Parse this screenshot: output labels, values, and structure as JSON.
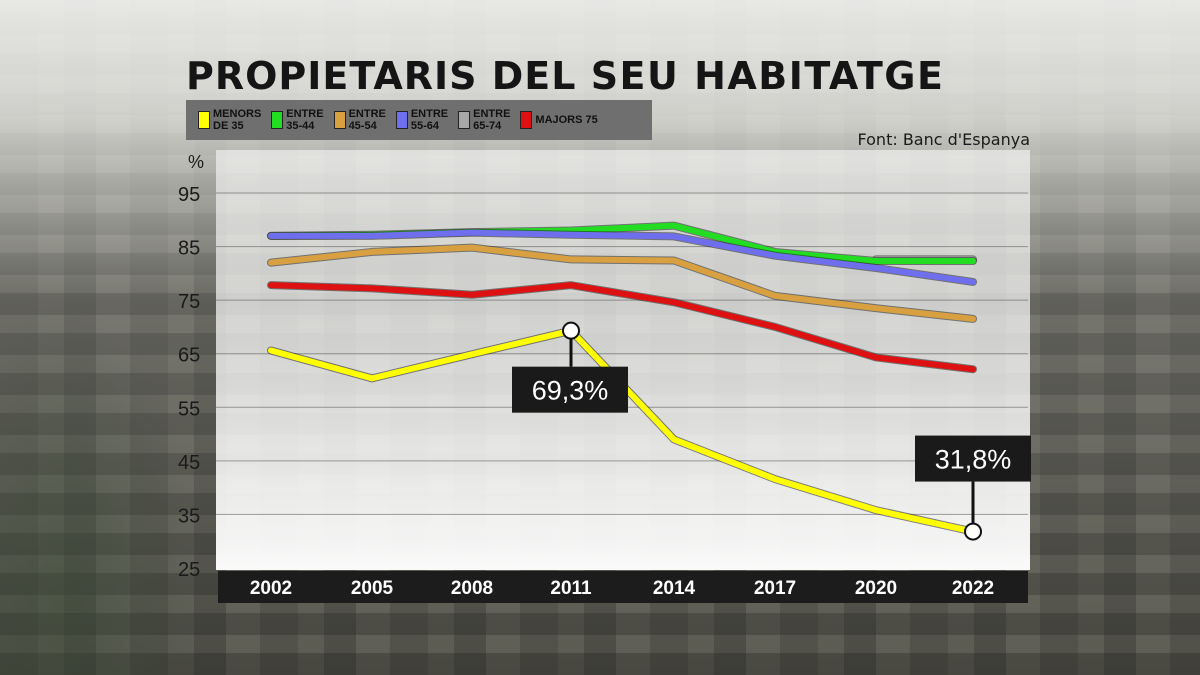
{
  "chart_data": {
    "type": "line",
    "title_part1": "PROPIETARIS DEL ",
    "title_part2": "SEU HABITATGE",
    "source": "Font: Banc d'Espanya",
    "ylabel": "%",
    "ylim": [
      25,
      95
    ],
    "yticks": [
      "95",
      "85",
      "75",
      "65",
      "55",
      "45",
      "35",
      "25"
    ],
    "categories": [
      "2002",
      "2005",
      "2008",
      "2011",
      "2014",
      "2017",
      "2020",
      "2022"
    ],
    "grid": true,
    "legend_position": "top-left",
    "series": [
      {
        "name": "MENORS\nDE 35",
        "color": "#ffff00",
        "values": [
          65.6,
          60.4,
          64.9,
          69.3,
          49.0,
          41.6,
          35.8,
          31.8
        ]
      },
      {
        "name": "ENTRE\n35-44",
        "color": "#22dd22",
        "values": [
          87.0,
          87.2,
          87.7,
          88.0,
          88.9,
          84.0,
          82.3,
          82.3
        ]
      },
      {
        "name": "ENTRE\n45-54",
        "color": "#d8a040",
        "values": [
          82.0,
          84.0,
          84.8,
          82.6,
          82.4,
          75.8,
          73.5,
          71.5
        ]
      },
      {
        "name": "ENTRE\n55-64",
        "color": "#6f6fee",
        "values": [
          87.0,
          87.0,
          87.6,
          87.2,
          86.9,
          83.3,
          81.0,
          78.4
        ]
      },
      {
        "name": "ENTRE\n65-74",
        "color": "#a8a8a8",
        "values": [
          null,
          null,
          null,
          null,
          null,
          null,
          82.6,
          82.6
        ]
      },
      {
        "name": "MAJORS 75",
        "color": "#dd1111",
        "values": [
          77.8,
          77.2,
          76.0,
          77.8,
          74.6,
          70.0,
          64.3,
          62.1
        ]
      }
    ],
    "annotations": [
      {
        "series": 0,
        "index": 3,
        "text": "69,3%"
      },
      {
        "series": 0,
        "index": 7,
        "text": "31,8%"
      }
    ]
  }
}
